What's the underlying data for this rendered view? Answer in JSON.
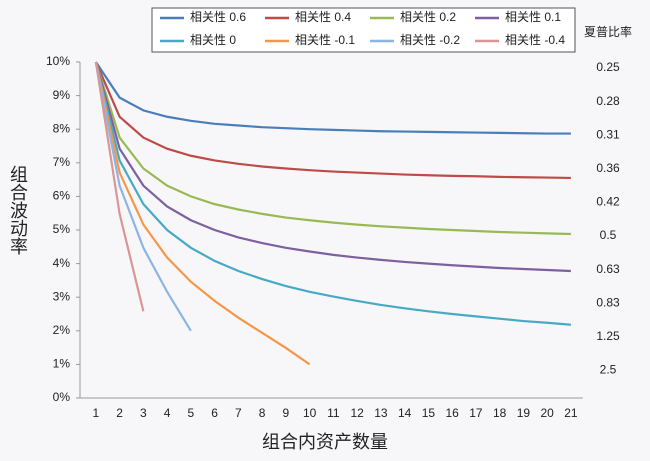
{
  "chart_data": {
    "type": "line",
    "x_label": "组合内资产数量",
    "y_label": "组合波动率",
    "y2_label": "夏普比率",
    "categories": [
      "1",
      "2",
      "3",
      "4",
      "5",
      "6",
      "7",
      "8",
      "9",
      "10",
      "11",
      "12",
      "13",
      "14",
      "15",
      "16",
      "17",
      "18",
      "19",
      "20",
      "21"
    ],
    "ylim": [
      0,
      10
    ],
    "yticks": [
      {
        "value": 0,
        "label": "0%"
      },
      {
        "value": 1,
        "label": "1%"
      },
      {
        "value": 2,
        "label": "2%"
      },
      {
        "value": 3,
        "label": "3%"
      },
      {
        "value": 4,
        "label": "4%"
      },
      {
        "value": 5,
        "label": "5%"
      },
      {
        "value": 6,
        "label": "6%"
      },
      {
        "value": 7,
        "label": "7%"
      },
      {
        "value": 8,
        "label": "8%"
      },
      {
        "value": 9,
        "label": "9%"
      },
      {
        "value": 10,
        "label": "10%"
      }
    ],
    "y2lim": [
      0,
      10
    ],
    "y2ticks": [
      {
        "value": 1,
        "label": "2.5"
      },
      {
        "value": 2,
        "label": "1.25"
      },
      {
        "value": 3,
        "label": "0.83"
      },
      {
        "value": 4,
        "label": "0.63"
      },
      {
        "value": 5,
        "label": "0.5"
      },
      {
        "value": 6,
        "label": "0.42"
      },
      {
        "value": 7,
        "label": "0.36"
      },
      {
        "value": 8,
        "label": "0.31"
      },
      {
        "value": 9,
        "label": "0.28"
      },
      {
        "value": 10,
        "label": "0.25"
      }
    ],
    "grid": false,
    "legend": "top",
    "series": [
      {
        "name": "相关性 0.6",
        "color": "#4a7ebb",
        "values": [
          10,
          8.94,
          8.56,
          8.37,
          8.25,
          8.16,
          8.11,
          8.06,
          8.03,
          8.0,
          7.98,
          7.96,
          7.94,
          7.93,
          7.92,
          7.91,
          7.9,
          7.89,
          7.88,
          7.87,
          7.87
        ]
      },
      {
        "name": "相关性 0.4",
        "color": "#be4b48",
        "values": [
          10,
          8.37,
          7.75,
          7.42,
          7.21,
          7.07,
          6.97,
          6.89,
          6.83,
          6.78,
          6.74,
          6.71,
          6.68,
          6.65,
          6.63,
          6.61,
          6.6,
          6.58,
          6.57,
          6.56,
          6.55
        ]
      },
      {
        "name": "相关性 0.2",
        "color": "#98b954",
        "values": [
          10,
          7.75,
          6.83,
          6.32,
          6.0,
          5.77,
          5.61,
          5.48,
          5.37,
          5.29,
          5.22,
          5.16,
          5.11,
          5.07,
          5.03,
          5.0,
          4.97,
          4.94,
          4.92,
          4.9,
          4.88
        ]
      },
      {
        "name": "相关性 0.1",
        "color": "#7d60a0",
        "values": [
          10,
          7.42,
          6.32,
          5.7,
          5.29,
          5.0,
          4.78,
          4.61,
          4.47,
          4.36,
          4.26,
          4.18,
          4.11,
          4.05,
          4.0,
          3.95,
          3.91,
          3.87,
          3.84,
          3.81,
          3.78
        ]
      },
      {
        "name": "相关性 0",
        "color": "#46aac5",
        "values": [
          10,
          7.07,
          5.77,
          5.0,
          4.47,
          4.08,
          3.78,
          3.54,
          3.33,
          3.16,
          3.02,
          2.89,
          2.77,
          2.67,
          2.58,
          2.5,
          2.43,
          2.36,
          2.29,
          2.24,
          2.18
        ]
      },
      {
        "name": "相关性 -0.1",
        "color": "#f79646",
        "values": [
          10,
          6.71,
          5.16,
          4.18,
          3.46,
          2.89,
          2.39,
          1.94,
          1.49,
          1.0,
          null,
          null,
          null,
          null,
          null,
          null,
          null,
          null,
          null,
          null,
          null
        ]
      },
      {
        "name": "相关性 -0.2",
        "color": "#8eb4e3",
        "values": [
          10,
          6.32,
          4.47,
          3.16,
          2.0,
          null,
          null,
          null,
          null,
          null,
          null,
          null,
          null,
          null,
          null,
          null,
          null,
          null,
          null,
          null,
          null
        ]
      },
      {
        "name": "相关性 -0.4",
        "color": "#d99694",
        "values": [
          10,
          5.48,
          2.58,
          null,
          null,
          null,
          null,
          null,
          null,
          null,
          null,
          null,
          null,
          null,
          null,
          null,
          null,
          null,
          null,
          null,
          null
        ]
      }
    ]
  }
}
